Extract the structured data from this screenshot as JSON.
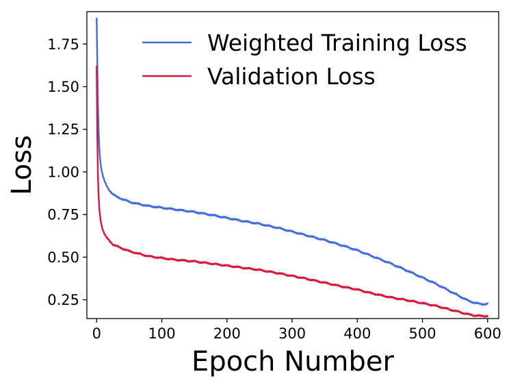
{
  "chart_data": {
    "type": "line",
    "title": "",
    "xlabel": "Epoch Number",
    "ylabel": "Loss",
    "xlim": [
      -15,
      617
    ],
    "ylim": [
      0.14,
      1.94
    ],
    "xticks": [
      0,
      100,
      200,
      300,
      400,
      500,
      600
    ],
    "xtick_labels": [
      "0",
      "100",
      "200",
      "300",
      "400",
      "500",
      "600"
    ],
    "yticks": [
      0.25,
      0.5,
      0.75,
      1.0,
      1.25,
      1.5,
      1.75
    ],
    "ytick_labels": [
      "0.25",
      "0.50",
      "0.75",
      "1.00",
      "1.25",
      "1.50",
      "1.75"
    ],
    "grid": false,
    "legend_position": "top-right",
    "series": [
      {
        "name": "Weighted Training Loss",
        "color": "#4169e1",
        "x": [
          0,
          1,
          2,
          3,
          4,
          5,
          6,
          8,
          10,
          12,
          15,
          20,
          25,
          30,
          40,
          50,
          60,
          80,
          100,
          120,
          150,
          180,
          200,
          220,
          250,
          280,
          300,
          320,
          350,
          380,
          400,
          420,
          450,
          480,
          500,
          520,
          540,
          560,
          570,
          580,
          590,
          600
        ],
        "values": [
          1.9,
          1.65,
          1.4,
          1.25,
          1.15,
          1.09,
          1.05,
          1.0,
          0.97,
          0.945,
          0.92,
          0.89,
          0.87,
          0.855,
          0.84,
          0.825,
          0.815,
          0.8,
          0.79,
          0.78,
          0.765,
          0.745,
          0.73,
          0.715,
          0.695,
          0.67,
          0.65,
          0.63,
          0.6,
          0.565,
          0.54,
          0.51,
          0.465,
          0.415,
          0.38,
          0.345,
          0.305,
          0.265,
          0.245,
          0.232,
          0.225,
          0.225
        ]
      },
      {
        "name": "Validation Loss",
        "color": "#dc143c",
        "x": [
          0,
          1,
          2,
          3,
          4,
          5,
          6,
          8,
          10,
          12,
          15,
          20,
          25,
          30,
          40,
          50,
          60,
          80,
          100,
          120,
          150,
          180,
          200,
          220,
          250,
          280,
          300,
          320,
          350,
          380,
          400,
          420,
          450,
          480,
          500,
          520,
          540,
          560,
          570,
          580,
          590,
          600
        ],
        "values": [
          1.62,
          1.22,
          0.97,
          0.86,
          0.79,
          0.75,
          0.72,
          0.68,
          0.655,
          0.635,
          0.615,
          0.595,
          0.575,
          0.565,
          0.55,
          0.535,
          0.525,
          0.505,
          0.495,
          0.485,
          0.475,
          0.46,
          0.45,
          0.44,
          0.425,
          0.405,
          0.39,
          0.375,
          0.35,
          0.325,
          0.31,
          0.29,
          0.265,
          0.245,
          0.23,
          0.215,
          0.195,
          0.175,
          0.165,
          0.158,
          0.155,
          0.155
        ]
      }
    ]
  }
}
